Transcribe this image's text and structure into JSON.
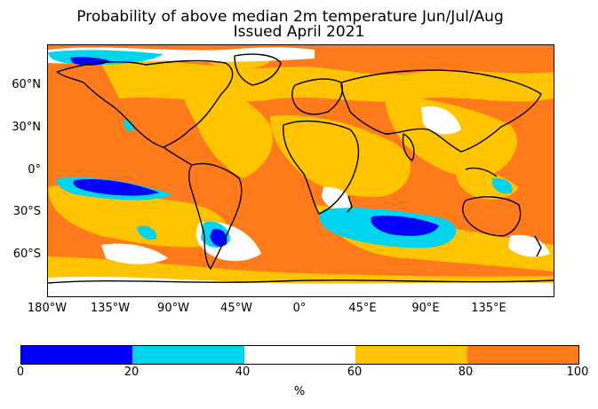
{
  "title": {
    "line1": "Probability of above median 2m temperature Jun/Jul/Aug",
    "line2": "Issued April 2021"
  },
  "map": {
    "latitude_labels": [
      "60°N",
      "30°N",
      "0°",
      "30°S",
      "60°S"
    ],
    "longitude_labels": [
      "180°W",
      "135°W",
      "90°W",
      "45°W",
      "0°",
      "45°E",
      "90°E",
      "135°E"
    ],
    "extent": {
      "lon": [
        -180,
        180
      ],
      "lat": [
        -90,
        90
      ]
    }
  },
  "colorbar": {
    "ticks": [
      "0",
      "20",
      "40",
      "60",
      "80",
      "100"
    ],
    "unit": "%",
    "bins": [
      {
        "range": [
          0,
          20
        ],
        "color": "#0000ff"
      },
      {
        "range": [
          20,
          40
        ],
        "color": "#00d4ee"
      },
      {
        "range": [
          40,
          60
        ],
        "color": "#ffffff"
      },
      {
        "range": [
          60,
          80
        ],
        "color": "#ffc400"
      },
      {
        "range": [
          80,
          100
        ],
        "color": "#ff7a1a"
      }
    ]
  }
}
